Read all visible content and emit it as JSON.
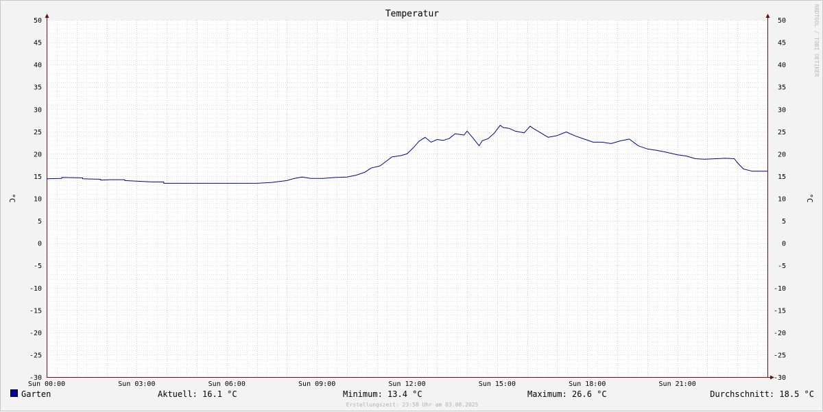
{
  "chart_data": {
    "type": "line",
    "title": "Temperatur",
    "ylabel": "°C",
    "ylim": [
      -30,
      50
    ],
    "yticks": [
      50,
      45,
      40,
      35,
      30,
      25,
      20,
      15,
      10,
      5,
      0,
      -5,
      -10,
      -15,
      -20,
      -25,
      -30
    ],
    "xlim_hours": [
      0,
      24
    ],
    "xticks": [
      {
        "hour": 0,
        "label": "Sun 00:00"
      },
      {
        "hour": 3,
        "label": "Sun 03:00"
      },
      {
        "hour": 6,
        "label": "Sun 06:00"
      },
      {
        "hour": 9,
        "label": "Sun 09:00"
      },
      {
        "hour": 12,
        "label": "Sun 12:00"
      },
      {
        "hour": 15,
        "label": "Sun 15:00"
      },
      {
        "hour": 18,
        "label": "Sun 18:00"
      },
      {
        "hour": 21,
        "label": "Sun 21:00"
      }
    ],
    "grid": true,
    "series": [
      {
        "name": "Garten",
        "color": "#00009a",
        "x": [
          0,
          0.5,
          0.5,
          1.2,
          1.2,
          1.8,
          1.8,
          2.1,
          2.6,
          2.6,
          3.5,
          3.9,
          3.9,
          5.0,
          6.0,
          7.0,
          7.5,
          8.0,
          8.2,
          8.5,
          8.8,
          9.2,
          9.6,
          10.0,
          10.3,
          10.6,
          10.8,
          11.1,
          11.5,
          11.8,
          12.0,
          12.2,
          12.4,
          12.6,
          12.8,
          13.0,
          13.2,
          13.4,
          13.6,
          13.9,
          14.0,
          14.2,
          14.4,
          14.5,
          14.7,
          14.9,
          15.1,
          15.2,
          15.4,
          15.6,
          15.9,
          16.1,
          16.2,
          16.5,
          16.7,
          17.0,
          17.3,
          17.6,
          17.9,
          18.2,
          18.5,
          18.8,
          19.1,
          19.4,
          19.7,
          20.0,
          20.3,
          20.6,
          21.0,
          21.3,
          21.6,
          21.9,
          22.3,
          22.6,
          22.9,
          23.0,
          23.2,
          23.5,
          24.0
        ],
        "values": [
          14.4,
          14.5,
          14.7,
          14.6,
          14.4,
          14.3,
          14.1,
          14.2,
          14.2,
          14.0,
          13.7,
          13.7,
          13.4,
          13.4,
          13.4,
          13.4,
          13.6,
          14.0,
          14.4,
          14.8,
          14.5,
          14.5,
          14.7,
          14.8,
          15.2,
          15.9,
          16.8,
          17.3,
          19.3,
          19.6,
          20.0,
          21.3,
          22.8,
          23.7,
          22.6,
          23.2,
          23.0,
          23.4,
          24.5,
          24.2,
          25.1,
          23.5,
          21.8,
          22.9,
          23.4,
          24.6,
          26.4,
          25.9,
          25.7,
          25.1,
          24.7,
          26.2,
          25.7,
          24.5,
          23.7,
          24.1,
          24.9,
          24.0,
          23.3,
          22.6,
          22.6,
          22.3,
          22.9,
          23.3,
          21.8,
          21.1,
          20.8,
          20.4,
          19.8,
          19.5,
          18.9,
          18.8,
          18.9,
          19.0,
          18.9,
          18.0,
          16.6,
          16.1,
          16.1
        ]
      }
    ]
  },
  "legend": {
    "series_name": "Garten",
    "current": "Aktuell: 16.1 °C",
    "minimum": "Minimum: 13.4 °C",
    "maximum": "Maximum: 26.6 °C",
    "average": "Durchschnitt: 18.5 °C"
  },
  "watermark": "RRDTOOL / TOBI OETIKER",
  "footer": "Erstellungszeit: 23:58 Uhr am 03.08.2025",
  "colors": {
    "line": "#00009a",
    "major_grid": "#e8a0a0",
    "minor_grid": "#c8c8c8",
    "axis": "#6a1010",
    "background": "#ffffff",
    "canvas": "#f3f3f3"
  }
}
